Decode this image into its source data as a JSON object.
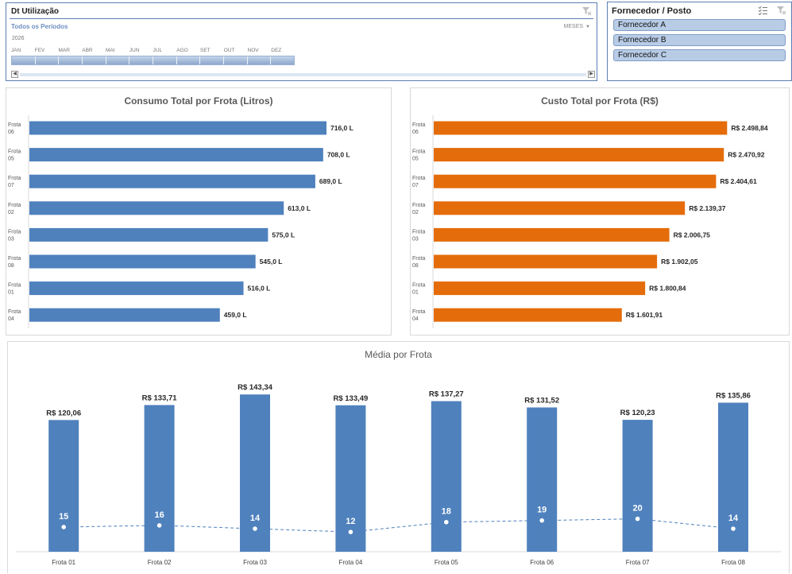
{
  "timeline": {
    "title": "Dt Utilização",
    "period_label": "Todos os Períodos",
    "level_label": "MESES",
    "year": "2026",
    "months": [
      "JAN",
      "FEV",
      "MAR",
      "ABR",
      "MAI",
      "JUN",
      "JUL",
      "AGO",
      "SET",
      "OUT",
      "NOV",
      "DEZ"
    ]
  },
  "supplier_slicer": {
    "title": "Fornecedor / Posto",
    "items": [
      "Fornecedor A",
      "Fornecedor B",
      "Fornecedor C"
    ]
  },
  "colors": {
    "blue": "#4f81bd",
    "orange": "#e46c0a",
    "accent_border": "#5b7fb3"
  },
  "chart_data": [
    {
      "type": "bar",
      "orientation": "horizontal",
      "title": "Consumo Total por Frota (Litros)",
      "categories": [
        [
          "Frota",
          "06"
        ],
        [
          "Frota",
          "05"
        ],
        [
          "Frota",
          "07"
        ],
        [
          "Frota",
          "02"
        ],
        [
          "Frota",
          "03"
        ],
        [
          "Frota",
          "08"
        ],
        [
          "Frota",
          "01"
        ],
        [
          "Frota",
          "04"
        ]
      ],
      "values": [
        716.0,
        708.0,
        689.0,
        613.0,
        575.0,
        545.0,
        516.0,
        459.0
      ],
      "data_labels": [
        "716,0 L",
        "708,0 L",
        "689,0 L",
        "613,0 L",
        "575,0 L",
        "545,0 L",
        "516,0 L",
        "459,0 L"
      ],
      "xlim": [
        0,
        850
      ],
      "color": "#4f81bd"
    },
    {
      "type": "bar",
      "orientation": "horizontal",
      "title": "Custo Total por Frota (R$)",
      "categories": [
        [
          "Frota",
          "06"
        ],
        [
          "Frota",
          "05"
        ],
        [
          "Frota",
          "07"
        ],
        [
          "Frota",
          "02"
        ],
        [
          "Frota",
          "03"
        ],
        [
          "Frota",
          "08"
        ],
        [
          "Frota",
          "01"
        ],
        [
          "Frota",
          "04"
        ]
      ],
      "values": [
        2498.84,
        2470.92,
        2404.61,
        2139.37,
        2006.75,
        1902.05,
        1800.84,
        1601.91
      ],
      "data_labels": [
        "R$ 2.498,84",
        "R$ 2.470,92",
        "R$ 2.404,61",
        "R$ 2.139,37",
        "R$ 2.006,75",
        "R$ 1.902,05",
        "R$ 1.800,84",
        "R$ 1.601,91"
      ],
      "xlim": [
        0,
        2950
      ],
      "color": "#e46c0a"
    },
    {
      "type": "bar",
      "title": "Média por Frota",
      "categories": [
        "Frota 01",
        "Frota 02",
        "Frota 03",
        "Frota 04",
        "Frota 05",
        "Frota 06",
        "Frota 07",
        "Frota 08"
      ],
      "series": [
        {
          "type": "bar",
          "values": [
            120.06,
            133.71,
            143.34,
            133.49,
            137.27,
            131.52,
            120.23,
            135.86
          ],
          "data_labels": [
            "R$ 120,06",
            "R$ 133,71",
            "R$ 143,34",
            "R$ 133,49",
            "R$ 137,27",
            "R$ 131,52",
            "R$ 120,23",
            "R$ 135,86"
          ],
          "color": "#4f81bd",
          "ylim": [
            0,
            150
          ]
        },
        {
          "type": "line",
          "style": "dashed",
          "values": [
            15,
            16,
            14,
            12,
            18,
            19,
            20,
            14
          ],
          "data_labels": [
            "15",
            "16",
            "14",
            "12",
            "18",
            "19",
            "20",
            "14"
          ],
          "color": "#4f81bd",
          "ylim": [
            0,
            100
          ]
        }
      ]
    }
  ]
}
